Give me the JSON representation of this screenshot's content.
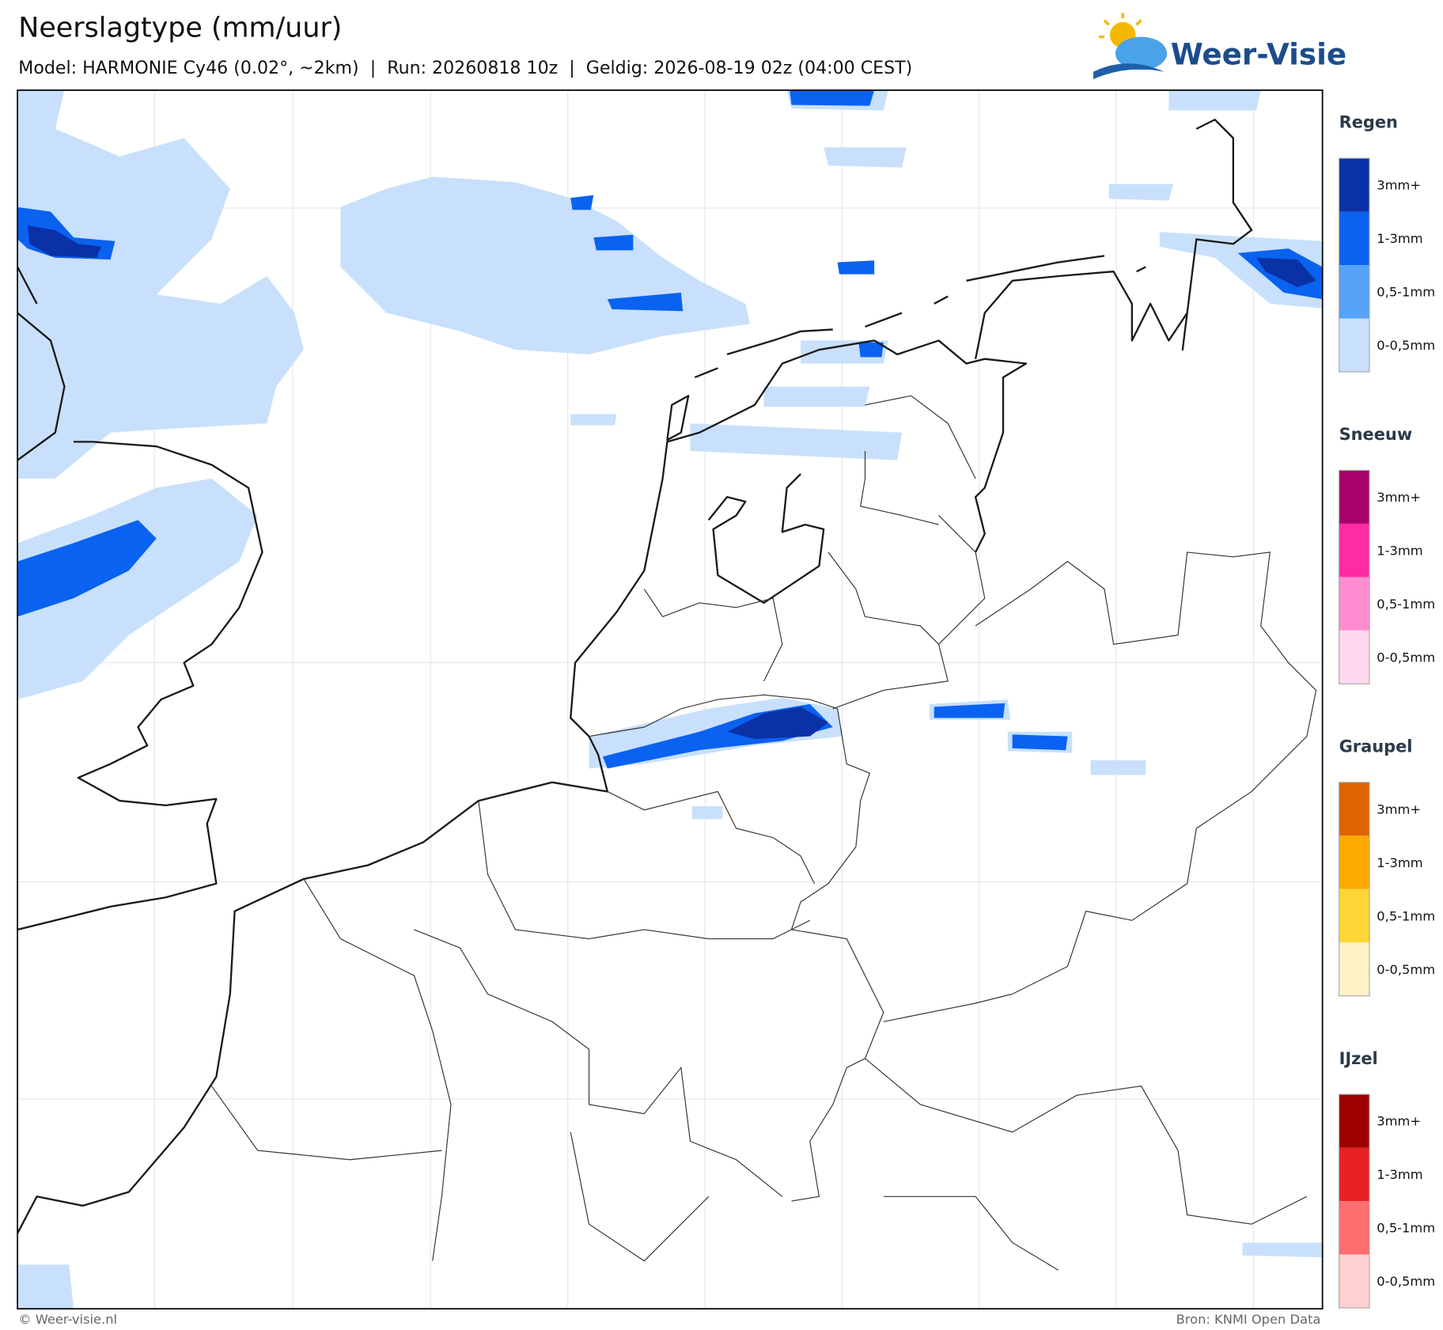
{
  "header": {
    "title": "Neerslagtype (mm/uur)",
    "subtitle": "Model: HARMONIE Cy46 (0.02°, ~2km)  |  Run: 20260818 10z  |  Geldig: 2026-08-19 02z (04:00 CEST)"
  },
  "logo": {
    "text": "Weer-Visie"
  },
  "legend": {
    "sections": [
      {
        "title": "Regen",
        "items": [
          {
            "label": "3mm+",
            "color": "#0a32a6"
          },
          {
            "label": "1-3mm",
            "color": "#0a62f0"
          },
          {
            "label": "0,5-1mm",
            "color": "#55a2f6"
          },
          {
            "label": "0-0,5mm",
            "color": "#c8e0fb"
          }
        ]
      },
      {
        "title": "Sneeuw",
        "items": [
          {
            "label": "3mm+",
            "color": "#a8006c"
          },
          {
            "label": "1-3mm",
            "color": "#ff2aa6"
          },
          {
            "label": "0,5-1mm",
            "color": "#ff8ccf"
          },
          {
            "label": "0-0,5mm",
            "color": "#ffd8ed"
          }
        ]
      },
      {
        "title": "Graupel",
        "items": [
          {
            "label": "3mm+",
            "color": "#df6300"
          },
          {
            "label": "1-3mm",
            "color": "#ffaa00"
          },
          {
            "label": "0,5-1mm",
            "color": "#ffd633"
          },
          {
            "label": "0-0,5mm",
            "color": "#fff2c6"
          }
        ]
      },
      {
        "title": "IJzel",
        "items": [
          {
            "label": "3mm+",
            "color": "#9e0000"
          },
          {
            "label": "1-3mm",
            "color": "#e82222"
          },
          {
            "label": "0,5-1mm",
            "color": "#ff6e6e"
          },
          {
            "label": "0-0,5mm",
            "color": "#ffd0d0"
          }
        ]
      }
    ]
  },
  "footer": {
    "left": "© Weer-visie.nl",
    "right": "Bron: KNMI Open Data"
  }
}
